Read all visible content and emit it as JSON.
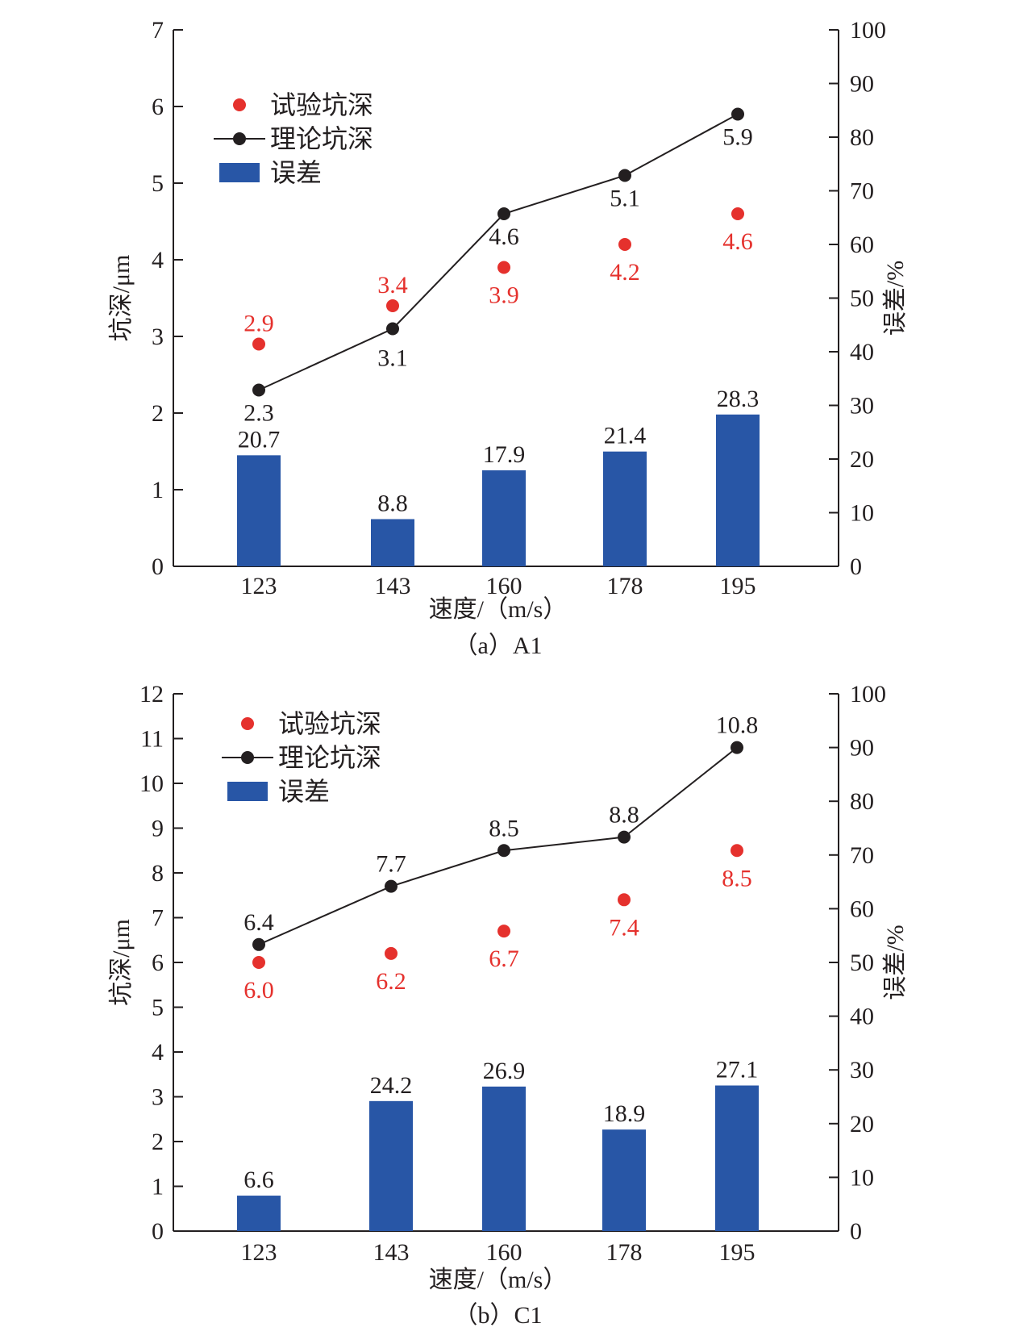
{
  "colors": {
    "bar": "#2856a6",
    "experimental": "#e5312d",
    "theoretical": "#231f20",
    "axis": "#231f20"
  },
  "chart_data": [
    {
      "type": "bar",
      "caption": "（a）A1",
      "categories": [
        "123",
        "143",
        "160",
        "178",
        "195"
      ],
      "xlabel": "速度/（m/s）",
      "ylabel": "坑深/μm",
      "y2label": "误差/%",
      "ylim": [
        0,
        7
      ],
      "yticks": [
        0,
        1,
        2,
        3,
        4,
        5,
        6,
        7
      ],
      "y2lim": [
        0,
        100
      ],
      "y2ticks": [
        0,
        10,
        20,
        30,
        40,
        50,
        60,
        70,
        80,
        90,
        100
      ],
      "legend": {
        "position": "top-left",
        "entries": [
          "试验坑深",
          "理论坑深",
          "误差"
        ]
      },
      "series": [
        {
          "name": "试验坑深",
          "kind": "scatter",
          "axis": "left",
          "values": [
            2.9,
            3.4,
            3.9,
            4.2,
            4.6
          ],
          "labels": [
            "2.9",
            "3.4",
            "3.9",
            "4.2",
            "4.6"
          ]
        },
        {
          "name": "理论坑深",
          "kind": "line",
          "axis": "left",
          "values": [
            2.3,
            3.1,
            4.6,
            5.1,
            5.9
          ],
          "labels": [
            "2.3",
            "3.1",
            "4.6",
            "5.1",
            "5.9"
          ]
        },
        {
          "name": "误差",
          "kind": "bar",
          "axis": "right",
          "values": [
            20.7,
            8.8,
            17.9,
            21.4,
            28.3
          ],
          "labels": [
            "20.7",
            "8.8",
            "17.9",
            "21.4",
            "28.3"
          ]
        }
      ]
    },
    {
      "type": "bar",
      "caption": "（b）C1",
      "categories": [
        "123",
        "143",
        "160",
        "178",
        "195"
      ],
      "xlabel": "速度/（m/s）",
      "ylabel": "坑深/μm",
      "y2label": "误差/%",
      "ylim": [
        0,
        12
      ],
      "yticks": [
        0,
        1,
        2,
        3,
        4,
        5,
        6,
        7,
        8,
        9,
        10,
        11,
        12
      ],
      "y2lim": [
        0,
        100
      ],
      "y2ticks": [
        0,
        10,
        20,
        30,
        40,
        50,
        60,
        70,
        80,
        90,
        100
      ],
      "legend": {
        "position": "top-left",
        "entries": [
          "试验坑深",
          "理论坑深",
          "误差"
        ]
      },
      "series": [
        {
          "name": "试验坑深",
          "kind": "scatter",
          "axis": "left",
          "values": [
            6.0,
            6.2,
            6.7,
            7.4,
            8.5
          ],
          "labels": [
            "6.0",
            "6.2",
            "6.7",
            "7.4",
            "8.5"
          ]
        },
        {
          "name": "理论坑深",
          "kind": "line",
          "axis": "left",
          "values": [
            6.4,
            7.7,
            8.5,
            8.8,
            10.8
          ],
          "labels": [
            "6.4",
            "7.7",
            "8.5",
            "8.8",
            "10.8"
          ]
        },
        {
          "name": "误差",
          "kind": "bar",
          "axis": "right",
          "values": [
            6.6,
            24.2,
            26.9,
            18.9,
            27.1
          ],
          "labels": [
            "6.6",
            "24.2",
            "26.9",
            "18.9",
            "27.1"
          ]
        }
      ]
    }
  ]
}
